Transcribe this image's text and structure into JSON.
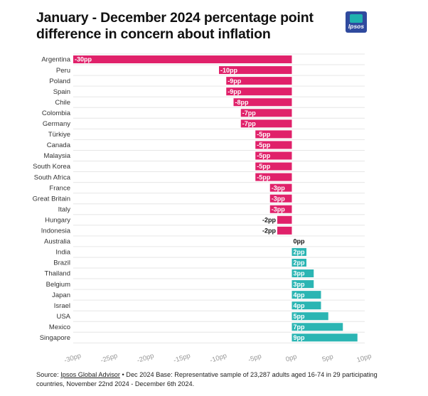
{
  "title": "January - December 2024 percentage point difference in concern about inflation",
  "logo": {
    "text": "Ipsos",
    "color": "#2f4a9e"
  },
  "source": {
    "prefix": "Source: ",
    "link": "Ipsos Global Advisor",
    "rest": " • Dec 2024 Base: Representative sample of 23,287 adults aged 16-74 in 29 participating countries, November 22nd 2024 - December 6th 2024."
  },
  "colors": {
    "negative": "#e0216a",
    "positive": "#2bb5b3",
    "grid": "#e6e6e6"
  },
  "chart_data": {
    "type": "bar",
    "orientation": "horizontal",
    "title": "January - December 2024 percentage point difference in concern about inflation",
    "xlabel": "",
    "ylabel": "",
    "xlim": [
      -30,
      10
    ],
    "x_ticks": [
      "-30pp",
      "-25pp",
      "-20pp",
      "-15pp",
      "-10pp",
      "-5pp",
      "0pp",
      "5pp",
      "10pp"
    ],
    "grid": true,
    "categories": [
      "Argentina",
      "Peru",
      "Poland",
      "Spain",
      "Chile",
      "Colombia",
      "Germany",
      "Türkiye",
      "Canada",
      "Malaysia",
      "South Korea",
      "South Africa",
      "France",
      "Great Britain",
      "Italy",
      "Hungary",
      "Indonesia",
      "Australia",
      "India",
      "Brazil",
      "Thailand",
      "Belgium",
      "Japan",
      "Israel",
      "USA",
      "Mexico",
      "Singapore"
    ],
    "values": [
      -30,
      -10,
      -9,
      -9,
      -8,
      -7,
      -7,
      -5,
      -5,
      -5,
      -5,
      -5,
      -3,
      -3,
      -3,
      -2,
      -2,
      0,
      2,
      2,
      3,
      3,
      4,
      4,
      5,
      7,
      9
    ],
    "labels": [
      "-30pp",
      "-10pp",
      "-9pp",
      "-9pp",
      "-8pp",
      "-7pp",
      "-7pp",
      "-5pp",
      "-5pp",
      "-5pp",
      "-5pp",
      "-5pp",
      "-3pp",
      "-3pp",
      "-3pp",
      "-2pp",
      "-2pp",
      "0pp",
      "2pp",
      "2pp",
      "3pp",
      "3pp",
      "4pp",
      "4pp",
      "5pp",
      "7pp",
      "9pp"
    ]
  }
}
